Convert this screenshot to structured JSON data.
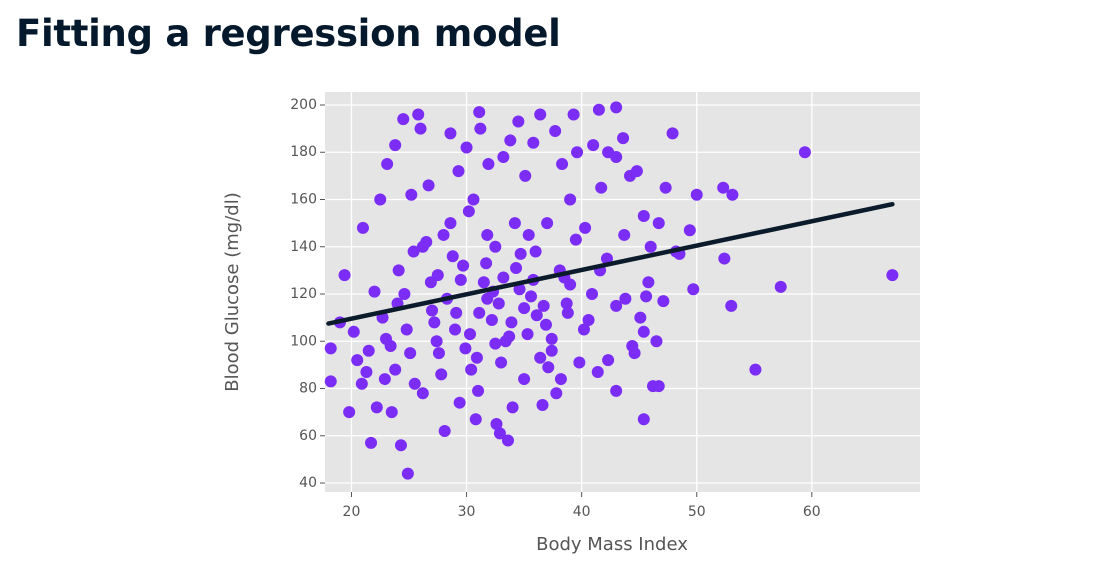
{
  "title": "Fitting a regression model",
  "chart_data": {
    "type": "scatter",
    "x_label": "Body Mass Index",
    "y_label": "Blood Glucose (mg/dl)",
    "xlim": [
      17.7,
      69.4
    ],
    "ylim": [
      36.2,
      205.5
    ],
    "xticks": [
      20,
      30,
      40,
      50,
      60
    ],
    "yticks": [
      40,
      60,
      80,
      100,
      120,
      140,
      160,
      180,
      200
    ],
    "grid": true,
    "background": "#e5e5e5",
    "series": [
      {
        "type": "scatter",
        "color": "#7b2cf5",
        "x": [
          67,
          59.4,
          55.1,
          57.3,
          53,
          49.7,
          45.4,
          24.9,
          21.7,
          24.3,
          43,
          41.5,
          39.3,
          31.1,
          25.8,
          47.9,
          18.2,
          18.2,
          19.4,
          52.3,
          53.1,
          50,
          49.4,
          48.5,
          52.4,
          46.2,
          46.7,
          45.6,
          19.8,
          20.2,
          21,
          22.5,
          23.1,
          23.8,
          24.5,
          25.2,
          26,
          26.7,
          27.4,
          28,
          28.6,
          29.3,
          30,
          30.6,
          31.2,
          31.9,
          32.5,
          33.2,
          33.8,
          34.5,
          35.1,
          35.8,
          36.4,
          37,
          37.7,
          38.3,
          39,
          39.6,
          40.3,
          41,
          41.7,
          42.3,
          43,
          43.6,
          44.2,
          44.8,
          45.4,
          46,
          46.7,
          47.3,
          20.5,
          21.3,
          22,
          22.7,
          23.4,
          24.1,
          24.8,
          25.5,
          26.2,
          26.9,
          27.6,
          28.3,
          29,
          29.7,
          30.4,
          31.1,
          31.8,
          32.5,
          33.2,
          33.9,
          34.6,
          35.3,
          36,
          36.7,
          37.4,
          38.1,
          38.8,
          39.5,
          40.2,
          40.9,
          41.6,
          42.3,
          43,
          43.7,
          44.4,
          45.1,
          45.8,
          46.5,
          47.1,
          48.2,
          22.2,
          23,
          23.8,
          24.6,
          25.4,
          26.2,
          27,
          27.8,
          28.6,
          29.4,
          30.2,
          31,
          31.8,
          32.6,
          33.4,
          34.2,
          35,
          35.8,
          36.6,
          37.4,
          38.2,
          39,
          39.8,
          40.6,
          41.4,
          42.2,
          43,
          43.8,
          44.6,
          45.4,
          28.1,
          29.5,
          30.8,
          32.2,
          33.6,
          35,
          36.4,
          37.8,
          32.9,
          34,
          26.5,
          27.2,
          28.8,
          29.9,
          31.5,
          32.8,
          34.3,
          35.6,
          36.9,
          38.5,
          30.3,
          31.7,
          33,
          34.7,
          36.1,
          24,
          25.1,
          27.5,
          29.1,
          30.9,
          32.3,
          33.7,
          35.4,
          37.1,
          38.7,
          21.5,
          22.9,
          19,
          20.9,
          23.5
        ],
        "values": [
          128,
          180,
          88,
          123,
          115,
          122,
          67,
          44,
          57,
          56,
          199,
          198,
          196,
          197,
          196,
          188,
          83,
          97,
          128,
          165,
          162,
          162,
          147,
          137,
          135,
          81,
          81,
          119,
          70,
          104,
          148,
          160,
          175,
          183,
          194,
          162,
          190,
          166,
          100,
          145,
          188,
          172,
          182,
          160,
          190,
          175,
          140,
          178,
          185,
          193,
          170,
          184,
          196,
          150,
          189,
          175,
          160,
          180,
          148,
          183,
          165,
          180,
          178,
          186,
          170,
          172,
          153,
          140,
          150,
          165,
          92,
          87,
          121,
          110,
          98,
          130,
          105,
          82,
          140,
          125,
          95,
          118,
          105,
          132,
          88,
          112,
          145,
          99,
          127,
          108,
          122,
          103,
          138,
          115,
          96,
          130,
          112,
          143,
          105,
          120,
          130,
          92,
          115,
          145,
          98,
          110,
          125,
          100,
          117,
          138,
          72,
          101,
          88,
          120,
          138,
          78,
          113,
          86,
          150,
          74,
          155,
          79,
          118,
          65,
          100,
          150,
          84,
          126,
          73,
          101,
          84,
          124,
          91,
          109,
          87,
          135,
          79,
          118,
          95,
          104,
          62,
          126,
          67,
          109,
          58,
          114,
          93,
          78,
          61,
          72,
          142,
          108,
          136,
          97,
          125,
          116,
          131,
          119,
          107,
          127,
          103,
          133,
          91,
          137,
          111,
          116,
          95,
          128,
          112,
          93,
          121,
          102,
          145,
          89,
          116,
          96,
          84,
          108,
          82,
          70
        ]
      },
      {
        "type": "line",
        "color": "#0b1b2b",
        "x": [
          18,
          67
        ],
        "values": [
          107.5,
          158
        ]
      }
    ]
  }
}
